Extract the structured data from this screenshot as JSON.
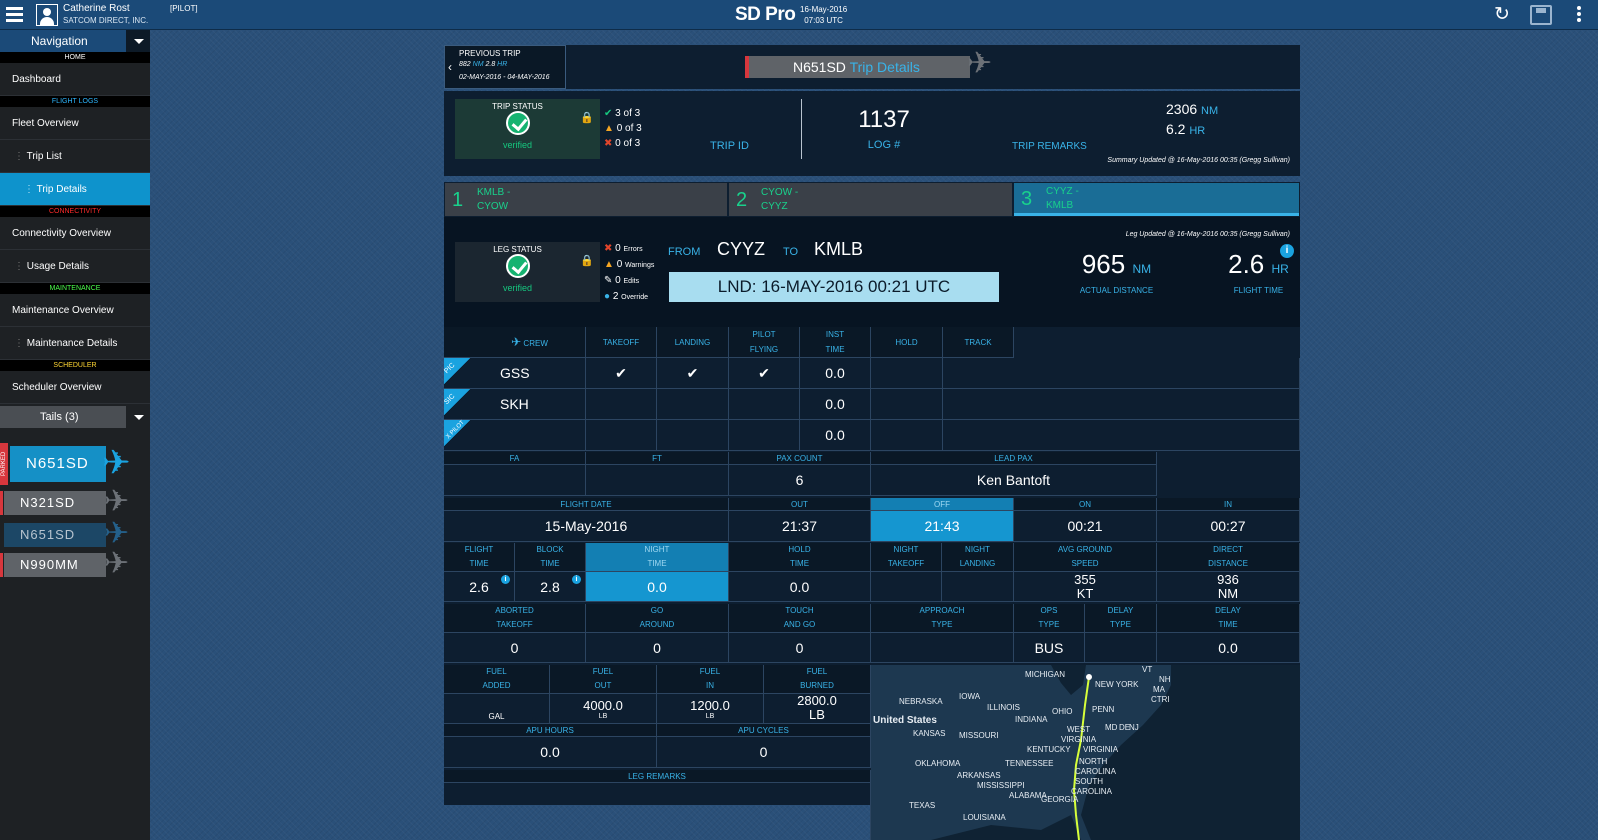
{
  "topbar": {
    "user_name": "Catherine Rost",
    "company": "SATCOM DIRECT, INC.",
    "role": "[PILOT]",
    "app_name": "SD Pro",
    "date": "16-May-2016",
    "time": "07:03 UTC",
    "icons": [
      "refresh-icon",
      "save-icon",
      "more-vertical-icon"
    ]
  },
  "nav": {
    "title": "Navigation",
    "home": "HOME",
    "dashboard": "Dashboard",
    "flight_logs": "FLIGHT LOGS",
    "fleet_overview": "Fleet Overview",
    "trip_list": "Trip List",
    "trip_details": "Trip Details",
    "connectivity": "CONNECTIVITY",
    "connectivity_overview": "Connectivity Overview",
    "usage_details": "Usage Details",
    "maintenance": "MAINTENANCE",
    "maintenance_overview": "Maintenance Overview",
    "maintenance_details": "Maintenance Details",
    "scheduler": "SCHEDULER",
    "scheduler_overview": "Scheduler Overview",
    "tails_title": "Tails (3)",
    "parked": "PARKED",
    "tails": [
      "N651SD",
      "N321SD",
      "N651SD",
      "N990MM"
    ],
    "colors": {
      "sections": [
        "#ffffff",
        "#2eb7ff",
        "#ff2a2a",
        "#4cff4c",
        "#ffd633"
      ]
    }
  },
  "prev_trip": {
    "label": "PREVIOUS TRIP",
    "dist": "882",
    "dist_unit": "NM",
    "hours": "2.8",
    "hours_unit": "HR",
    "range": "02-MAY-2016 - 04-MAY-2016"
  },
  "title": {
    "tail": "N651SD",
    "text": "Trip Details"
  },
  "trip": {
    "status_label": "TRIP STATUS",
    "status": "verified",
    "ok": "3 of 3",
    "warn": "0 of 3",
    "err": "0 of 3",
    "trip_id_label": "TRIP ID",
    "log": "1137",
    "log_label": "LOG #",
    "dist": "2306",
    "dist_unit": "NM",
    "hours": "6.2",
    "hours_unit": "HR",
    "remarks_label": "TRIP REMARKS",
    "updated": "Summary Updated @ 16-May-2016 00:35 (Gregg Sullivan)"
  },
  "legs": [
    {
      "num": "1",
      "route_a": "KMLB -",
      "route_b": "CYOW"
    },
    {
      "num": "2",
      "route_a": "CYOW -",
      "route_b": "CYYZ"
    },
    {
      "num": "3",
      "route_a": "CYYZ -",
      "route_b": "KMLB"
    }
  ],
  "leg": {
    "updated": "Leg Updated @ 16-May-2016 00:35 (Gregg Sullivan)",
    "status_label": "LEG STATUS",
    "status": "verified",
    "errors": "0",
    "errors_label": "Errors",
    "warnings": "0",
    "warnings_label": "Warnings",
    "edits": "0",
    "edits_label": "Edits",
    "overrides": "2",
    "overrides_label": "Override",
    "from_label": "FROM",
    "from": "CYYZ",
    "to_label": "TO",
    "to": "KMLB",
    "landed": "LND: 16-MAY-2016 00:21 UTC",
    "actual_distance": "965",
    "actual_distance_unit": "NM",
    "actual_distance_label": "ACTUAL DISTANCE",
    "flight_time": "2.6",
    "flight_time_unit": "HR",
    "flight_time_label": "FLIGHT TIME"
  },
  "crew": {
    "headers": [
      "CREW",
      "TAKEOFF",
      "LANDING",
      "PILOT",
      "FLYING",
      "INST",
      "TIME",
      "HOLD",
      "TRACK"
    ],
    "roles": [
      "PIC",
      "SIC",
      "X PILOT"
    ],
    "rows": [
      {
        "name": "GSS",
        "inst": "0.0"
      },
      {
        "name": "SKH",
        "inst": "0.0"
      },
      {
        "name": "",
        "inst": "0.0"
      }
    ]
  },
  "pax": {
    "fa": "FA",
    "ft": "FT",
    "count_label": "PAX COUNT",
    "count": "6",
    "lead_label": "LEAD PAX",
    "lead": "Ken Bantoft"
  },
  "times": {
    "flight_date_label": "FLIGHT DATE",
    "flight_date": "15-May-2016",
    "out_label": "OUT",
    "out": "21:37",
    "off_label": "OFF",
    "off": "21:43",
    "on_label": "ON",
    "on": "00:21",
    "in_label": "IN",
    "in": "00:27"
  },
  "stats": {
    "flight_label_a": "FLIGHT",
    "flight_label_b": "TIME",
    "flight": "2.6",
    "block_label_a": "BLOCK",
    "block_label_b": "TIME",
    "block": "2.8",
    "night_label_a": "NIGHT",
    "night_label_b": "TIME",
    "night": "0.0",
    "hold_label_a": "HOLD",
    "hold_label_b": "TIME",
    "hold": "0.0",
    "night_to_a": "NIGHT",
    "night_to_b": "TAKEOFF",
    "night_ld_a": "NIGHT",
    "night_ld_b": "LANDING",
    "gs_label_a": "AVG GROUND",
    "gs_label_b": "SPEED",
    "gs": "355",
    "gs_unit": "KT",
    "dd_label_a": "DIRECT",
    "dd_label_b": "DISTANCE",
    "dd": "936",
    "dd_unit": "NM"
  },
  "ops": {
    "aborted_a": "ABORTED",
    "aborted_b": "TAKEOFF",
    "aborted": "0",
    "go_a": "GO",
    "go_b": "AROUND",
    "go": "0",
    "touch_a": "TOUCH",
    "touch_b": "AND GO",
    "touch": "0",
    "approach_a": "APPROACH",
    "approach_b": "TYPE",
    "ops_a": "OPS",
    "ops_b": "TYPE",
    "ops": "BUS",
    "delay_a": "DELAY",
    "delay_b": "TYPE",
    "delay_time_a": "DELAY",
    "delay_time_b": "TIME",
    "delay_time": "0.0"
  },
  "fuel": {
    "added_a": "FUEL",
    "added_b": "ADDED",
    "added_unit": "GAL",
    "out_a": "FUEL",
    "out_b": "OUT",
    "out": "4000.0",
    "out_unit": "LB",
    "in_a": "FUEL",
    "in_b": "IN",
    "in": "1200.0",
    "in_unit": "LB",
    "burned_a": "FUEL",
    "burned_b": "BURNED",
    "burned": "2800.0",
    "burned_unit": "LB",
    "apu_hours_label": "APU HOURS",
    "apu_hours": "0.0",
    "apu_cycles_label": "APU CYCLES",
    "apu_cycles": "0",
    "remarks_label": "LEG REMARKS"
  },
  "map": {
    "labels": [
      "MICHIGAN",
      "NEBRASKA",
      "IOWA",
      "ILLINOIS",
      "OHIO",
      "PENN",
      "NEW YORK",
      "VT",
      "NH",
      "MA",
      "CTRI",
      "United States",
      "KANSAS",
      "MISSOURI",
      "INDIANA",
      "WEST",
      "VIRGINIA",
      "MD",
      "DE",
      "NJ",
      "VIRGINIA",
      "KENTUCKY",
      "OKLAHOMA",
      "TENNESSEE",
      "NORTH",
      "CAROLINA",
      "ARKANSAS",
      "MISSISSIPPI",
      "SOUTH",
      "CAROLINA",
      "ALABAMA",
      "GEORGIA",
      "TEXAS",
      "LOUISIANA"
    ],
    "colors": {
      "route": "#d7ff3a",
      "land": "#1d3850",
      "water": "#0f2233"
    }
  }
}
